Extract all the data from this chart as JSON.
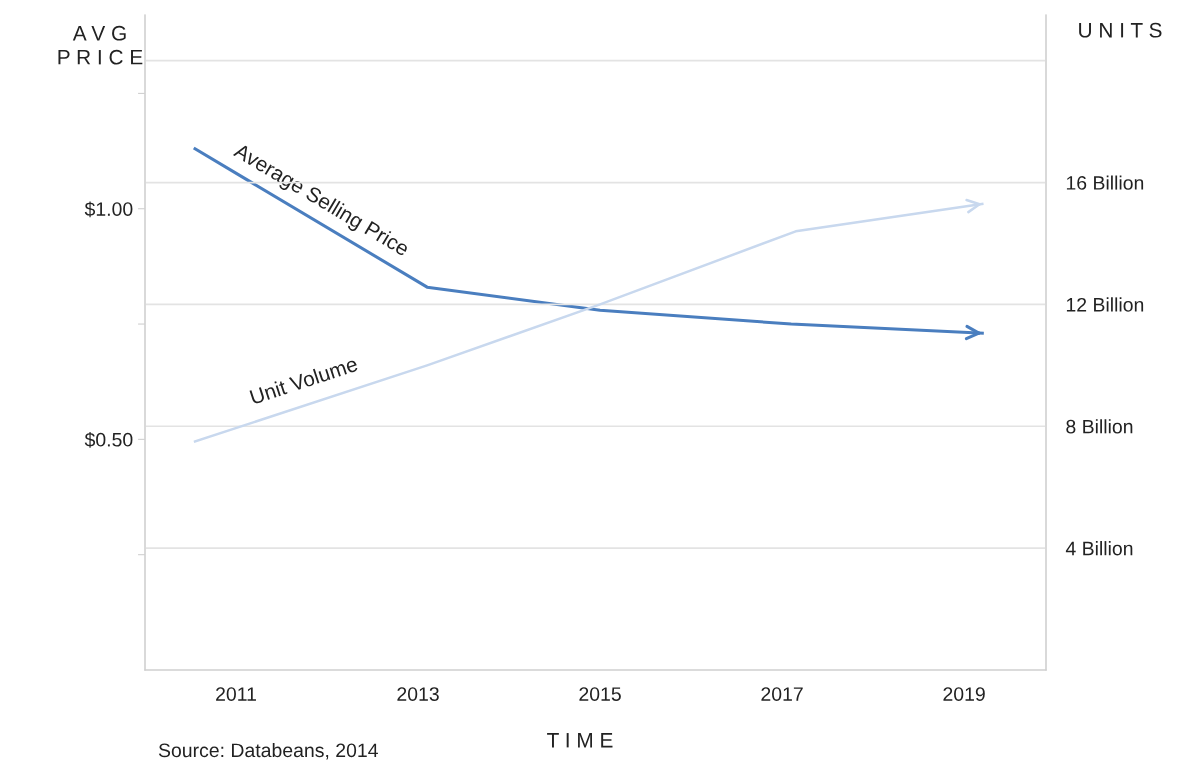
{
  "chart_data": {
    "type": "line",
    "xlabel": "T I M E",
    "ylabel": "A V G\nP R I C E",
    "y2label": "U N I T S",
    "annotations": [
      "Source: Databeans, 2014"
    ],
    "xlim": [
      2010,
      2019.9
    ],
    "xticks": [
      2011,
      2013,
      2015,
      2017,
      2019
    ],
    "ylim": [
      0,
      1.42
    ],
    "yticks": [
      {
        "value": 0.25,
        "label": null
      },
      {
        "value": 0.5,
        "label": "$0.50"
      },
      {
        "value": 0.75,
        "label": null
      },
      {
        "value": 1.0,
        "label": "$1.00"
      },
      {
        "value": 1.25,
        "label": null
      }
    ],
    "y2lim": [
      0,
      21.5
    ],
    "y2ticks": [
      {
        "value": 4,
        "label": "4 Billion"
      },
      {
        "value": 8,
        "label": "8 Billion"
      },
      {
        "value": 12,
        "label": "12 Billion"
      },
      {
        "value": 16,
        "label": "16 Billion"
      },
      {
        "value": 20,
        "label": null
      }
    ],
    "grid": "y",
    "legend": false,
    "marker": "none",
    "line_style": "solid",
    "series": [
      {
        "name": "Average Selling Price",
        "color": "#4a7ebf",
        "x": [
          2010.55,
          2013.1,
          2015,
          2017.1,
          2019.2
        ],
        "values": [
          1.13,
          0.83,
          0.78,
          0.75,
          0.73
        ]
      },
      {
        "name": "Unit Volume",
        "color": "#c8d8ee",
        "axis": "y2",
        "x": [
          2010.55,
          2013.1,
          2015,
          2017.15,
          2019.2
        ],
        "values": [
          7.5,
          10.0,
          12.0,
          14.4,
          15.3
        ]
      }
    ]
  }
}
